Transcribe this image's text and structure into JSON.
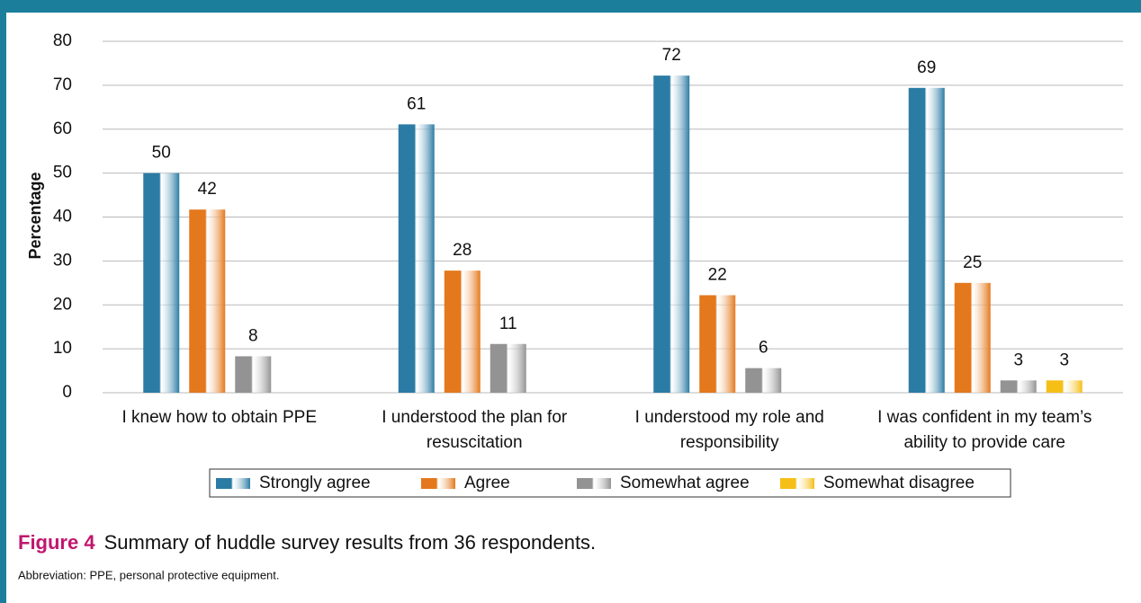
{
  "chart_data": {
    "type": "bar",
    "ylabel": "Percentage",
    "categories": [
      "I knew how to obtain PPE",
      "I understood the plan for resuscitation",
      "I understood my role and responsibility",
      "I was confident in my team’s ability to provide care"
    ],
    "series": [
      {
        "name": "Strongly agree",
        "color": "#2b7ca4",
        "values": [
          50,
          61.1,
          72.2,
          69.4
        ],
        "value_labels": [
          "50",
          "61",
          "72",
          "69"
        ]
      },
      {
        "name": "Agree",
        "color": "#e4781c",
        "values": [
          41.7,
          27.8,
          22.2,
          25
        ],
        "value_labels": [
          "42",
          "28",
          "22",
          "25"
        ]
      },
      {
        "name": "Somewhat agree",
        "color": "#939393",
        "values": [
          8.3,
          11.1,
          5.6,
          2.8
        ],
        "value_labels": [
          "8",
          "11",
          "6",
          "3"
        ]
      },
      {
        "name": "Somewhat disagree",
        "color": "#f5bf17",
        "values": [
          null,
          null,
          null,
          2.8
        ],
        "value_labels": [
          null,
          null,
          null,
          "3"
        ]
      }
    ],
    "ylim": [
      0,
      80
    ],
    "yticks": [
      0,
      10,
      20,
      30,
      40,
      50,
      60,
      70,
      80
    ],
    "grid": true,
    "legend": "bottom",
    "figure_label": "Figure 4",
    "caption": "Summary of huddle survey results from 36 respondents.",
    "note": "Abbreviation: PPE, personal protective equipment."
  }
}
